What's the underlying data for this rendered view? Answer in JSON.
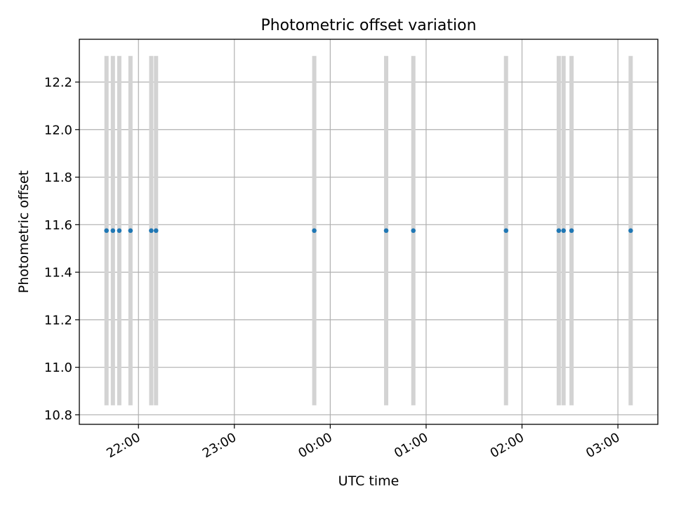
{
  "chart_data": {
    "type": "scatter",
    "title": "Photometric offset variation",
    "xlabel": "UTC time",
    "ylabel": "Photometric offset",
    "x_axis_kind": "time (HH:MM, UTC), night spanning midnight",
    "xlim": [
      "21:23",
      "03:25"
    ],
    "ylim": [
      10.76,
      12.38
    ],
    "x_ticks": [
      {
        "value": "22:00",
        "label": "22:00"
      },
      {
        "value": "23:00",
        "label": "23:00"
      },
      {
        "value": "00:00",
        "label": "00:00"
      },
      {
        "value": "01:00",
        "label": "01:00"
      },
      {
        "value": "02:00",
        "label": "02:00"
      },
      {
        "value": "03:00",
        "label": "03:00"
      }
    ],
    "y_ticks": [
      10.8,
      11.0,
      11.2,
      11.4,
      11.6,
      11.8,
      12.0,
      12.2
    ],
    "y_tick_labels": [
      "10.8",
      "11.0",
      "11.2",
      "11.4",
      "11.6",
      "11.8",
      "12.0",
      "12.2"
    ],
    "grid": true,
    "series": [
      {
        "color": "#1f77b4",
        "marker": "dot",
        "x": [
          "21:40",
          "21:44",
          "21:48",
          "21:55",
          "22:08",
          "22:11",
          "23:50",
          "00:35",
          "00:52",
          "01:50",
          "02:23",
          "02:26",
          "02:31",
          "03:08"
        ],
        "y": [
          11.575,
          11.575,
          11.575,
          11.575,
          11.575,
          11.575,
          11.575,
          11.575,
          11.575,
          11.575,
          11.575,
          11.575,
          11.575,
          11.575
        ]
      }
    ],
    "error_bars": {
      "color": "#d3d3d3",
      "low": 10.84,
      "high": 12.31
    }
  }
}
